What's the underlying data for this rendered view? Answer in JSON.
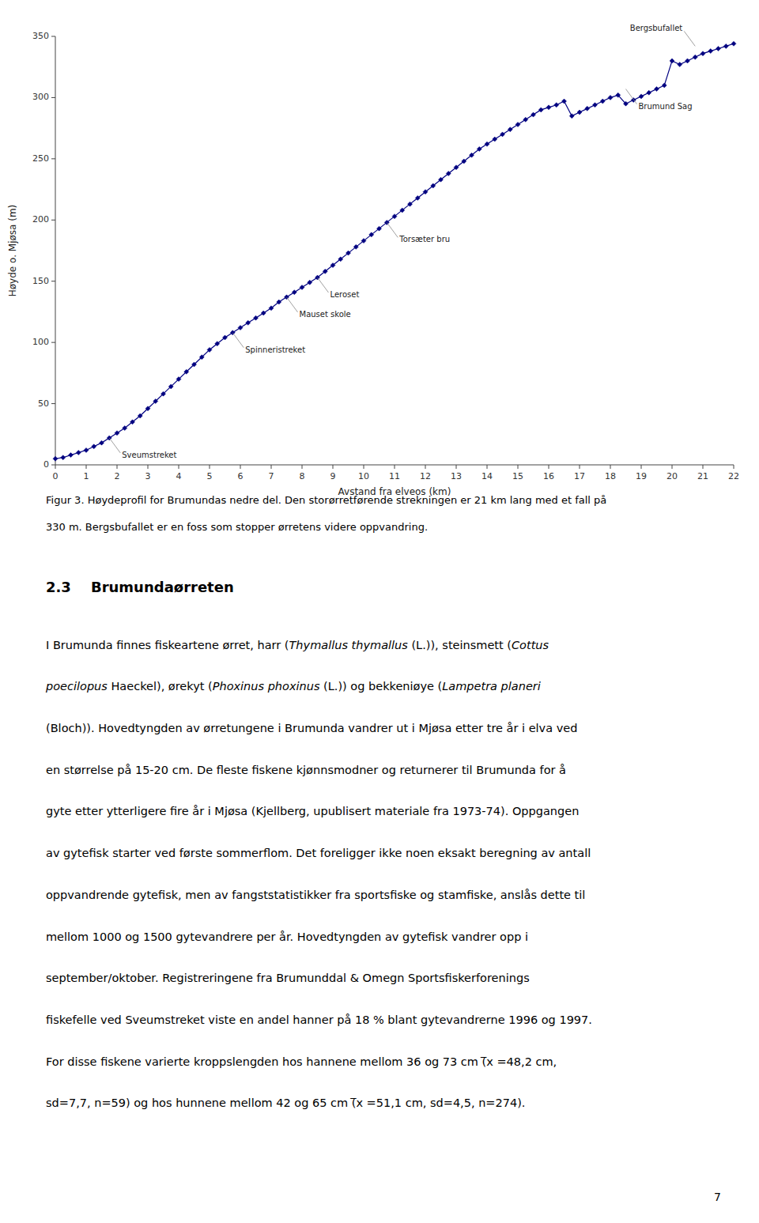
{
  "chart_data": {
    "type": "line",
    "x": [
      0,
      0.25,
      0.5,
      0.75,
      1.0,
      1.25,
      1.5,
      1.75,
      2.0,
      2.25,
      2.5,
      2.75,
      3.0,
      3.25,
      3.5,
      3.75,
      4.0,
      4.25,
      4.5,
      4.75,
      5.0,
      5.25,
      5.5,
      5.75,
      6.0,
      6.25,
      6.5,
      6.75,
      7.0,
      7.25,
      7.5,
      7.75,
      8.0,
      8.25,
      8.5,
      8.75,
      9.0,
      9.25,
      9.5,
      9.75,
      10.0,
      10.25,
      10.5,
      10.75,
      11.0,
      11.25,
      11.5,
      11.75,
      12.0,
      12.25,
      12.5,
      12.75,
      13.0,
      13.25,
      13.5,
      13.75,
      14.0,
      14.25,
      14.5,
      14.75,
      15.0,
      15.25,
      15.5,
      15.75,
      16.0,
      16.25,
      16.5,
      16.75,
      17.0,
      17.25,
      17.5,
      17.75,
      18.0,
      18.25,
      18.5,
      18.75,
      19.0,
      19.25,
      19.5,
      19.75,
      20.0,
      20.25,
      20.5,
      20.75,
      21.0,
      21.25,
      21.5,
      21.75,
      22.0
    ],
    "values": [
      5,
      6,
      8,
      10,
      12,
      15,
      18,
      22,
      26,
      30,
      35,
      40,
      46,
      52,
      58,
      64,
      70,
      76,
      82,
      88,
      94,
      99,
      104,
      108,
      112,
      116,
      120,
      124,
      128,
      133,
      137,
      141,
      145,
      149,
      153,
      158,
      163,
      168,
      173,
      178,
      183,
      188,
      193,
      198,
      203,
      208,
      213,
      218,
      223,
      228,
      233,
      238,
      243,
      248,
      253,
      258,
      262,
      266,
      270,
      274,
      278,
      282,
      286,
      290,
      292,
      294,
      297,
      285,
      288,
      291,
      294,
      297,
      300,
      302,
      295,
      298,
      301,
      304,
      307,
      310,
      330,
      327,
      330,
      333,
      336,
      338,
      340,
      342,
      344
    ],
    "color": "#000080",
    "marker": "diamond",
    "xlim": [
      0,
      22
    ],
    "ylim": [
      0,
      350
    ],
    "xticks": [
      0,
      1,
      2,
      3,
      4,
      5,
      6,
      7,
      8,
      9,
      10,
      11,
      12,
      13,
      14,
      15,
      16,
      17,
      18,
      19,
      20,
      21,
      22
    ],
    "yticks": [
      0,
      50,
      100,
      150,
      200,
      250,
      300,
      350
    ],
    "xlabel": "Avstand fra elveos (km)",
    "ylabel": "Høyde o. Mjøsa (m)",
    "grid": false,
    "annotations": [
      {
        "label": "Sveumstreket",
        "x": 1.75,
        "y": 22
      },
      {
        "label": "Spinneristreket",
        "x": 5.75,
        "y": 108
      },
      {
        "label": "Mauset skole",
        "x": 7.5,
        "y": 137
      },
      {
        "label": "Leroset",
        "x": 8.5,
        "y": 153
      },
      {
        "label": "Torsæter bru",
        "x": 10.75,
        "y": 198
      },
      {
        "label": "Brumund Sag",
        "x": 18.5,
        "y": 307
      },
      {
        "label": "Bergsbufallet",
        "x": 20.75,
        "y": 342
      }
    ]
  },
  "caption": [
    "Figur 3. Høydeprofil for Brumundas nedre del. Den storørretførende strekningen er 21 km lang med et fall på",
    "330 m. Bergsbufallet er en foss som stopper ørretens videre oppvandring."
  ],
  "section_title": "2.3    Brumundaørreten",
  "body": [
    [
      {
        "text": "I Brumunda finnes fiskeartene ørret, harr (",
        "italic": false
      },
      {
        "text": "Thymallus thymallus",
        "italic": true
      },
      {
        "text": " (L.)), steinsmett (",
        "italic": false
      },
      {
        "text": "Cottus",
        "italic": true
      }
    ],
    [
      {
        "text": "poecilopus",
        "italic": true
      },
      {
        "text": " Haeckel), ørekyt (",
        "italic": false
      },
      {
        "text": "Phoxinus phoxinus",
        "italic": true
      },
      {
        "text": " (L.)) og bekkeniøye (",
        "italic": false
      },
      {
        "text": "Lampetra planeri",
        "italic": true
      }
    ],
    [
      {
        "text": "(Bloch)). Hovedtyngden av ørretungene i Brumunda vandrer ut i Mjøsa etter tre år i elva ved",
        "italic": false
      }
    ],
    [
      {
        "text": "en størrelse på 15-20 cm. De fleste fiskene kjønnsmodner og returnerer til Brumunda for å",
        "italic": false
      }
    ],
    [
      {
        "text": "gyte etter ytterligere fire år i Mjøsa (Kjellberg, upublisert materiale fra 1973-74). Oppgangen",
        "italic": false
      }
    ],
    [
      {
        "text": "av gytefisk starter ved første sommerflom. Det foreligger ikke noen eksakt beregning av antall",
        "italic": false
      }
    ],
    [
      {
        "text": "oppvandrende gytefisk, men av fangststatistikker fra sportsfiske og stamfiske, anslås dette til",
        "italic": false
      }
    ],
    [
      {
        "text": "mellom 1000 og 1500 gytevandrere per år. Hovedtyngden av gytefisk vandrer opp i",
        "italic": false
      }
    ],
    [
      {
        "text": "september/oktober. Registreringene fra Brumunddal & Omegn Sportsfiskerforenings",
        "italic": false
      }
    ],
    [
      {
        "text": "fiskefelle ved Sveumstreket viste en andel hanner på 18 % blant gytevandrerne 1996 og 1997.",
        "italic": false
      }
    ],
    [
      {
        "text": "For disse fiskene varierte kroppslengden hos hannene mellom 36 og 73 cm (̅x =48,2 cm,",
        "italic": false
      }
    ],
    [
      {
        "text": "sd=7,7, n=59) og hos hunnene mellom 42 og 65 cm (̅x =51,1 cm, sd=4,5, n=274).",
        "italic": false
      }
    ]
  ],
  "page_number": "7"
}
